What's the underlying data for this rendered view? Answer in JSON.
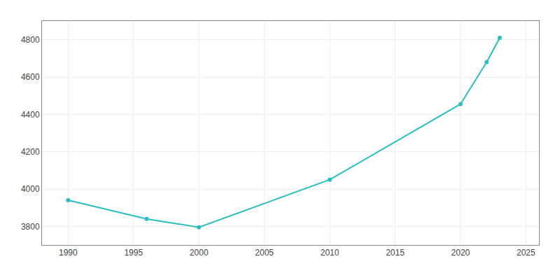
{
  "chart_data": {
    "type": "line",
    "x": [
      1990,
      1996,
      2000,
      2010,
      2020,
      2022,
      2023
    ],
    "values": [
      3940,
      3840,
      3795,
      4050,
      4455,
      4680,
      4810
    ],
    "color": "#29BFC2",
    "marker": "circle",
    "xlim": [
      1988,
      2026
    ],
    "ylim": [
      3700,
      4900
    ],
    "xticks": [
      1990,
      1995,
      2000,
      2005,
      2010,
      2015,
      2020,
      2025
    ],
    "yticks": [
      3800,
      4000,
      4200,
      4400,
      4600,
      4800
    ],
    "grid": true
  }
}
